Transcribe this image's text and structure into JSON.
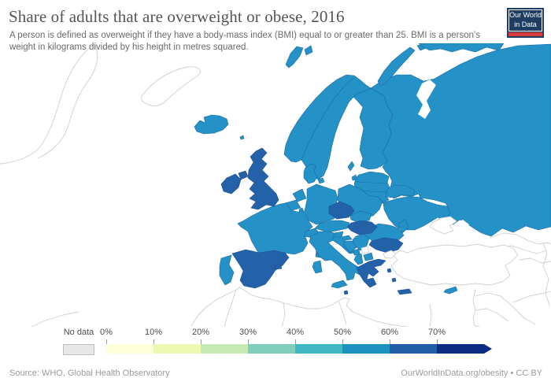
{
  "header": {
    "title": "Share of adults that are overweight or obese, 2016",
    "subtitle": "A person is defined as overweight if they have a body-mass index (BMI) equal to or greater than 25. BMI is a person's weight in kilograms divided by his height in metres squared."
  },
  "logo": {
    "line1": "Our World",
    "line2": "in Data"
  },
  "colors": {
    "logo-bg": "#1d3d63",
    "logo-accent": "#d73c3c"
  },
  "legend": {
    "no_data_label": "No data",
    "no_data_fill": "#e7e7e7",
    "no_data_border": "#bdbdbd",
    "ticks": [
      "0%",
      "10%",
      "20%",
      "30%",
      "40%",
      "50%",
      "60%",
      "70%"
    ],
    "segment_colors": [
      "#ffffd9",
      "#edf8b1",
      "#c7e9b4",
      "#7fcdbb",
      "#41b6c4",
      "#1d91c0",
      "#225ea8",
      "#0c2c84"
    ]
  },
  "map": {
    "palette": {
      "mid": "#2491c7",
      "dark": "#2361a9",
      "border": "#1b6ba0",
      "nodata_stroke": "#cfcfcf"
    },
    "class_ranges": {
      "50-60%": "mid",
      "60-70%": "dark",
      "no-data": "nodata"
    },
    "countries": {
      "iceland": "50-60%",
      "faroe-islands": "50-60%",
      "norway": "50-60%",
      "sweden": "50-60%",
      "svalbard": "50-60%",
      "finland": "50-60%",
      "denmark": "50-60%",
      "russia": "50-60%",
      "estonia": "50-60%",
      "latvia": "50-60%",
      "lithuania": "50-60%",
      "belarus": "50-60%",
      "ukraine": "50-60%",
      "moldova": "50-60%",
      "poland": "50-60%",
      "germany": "50-60%",
      "netherlands": "50-60%",
      "belgium": "50-60%",
      "luxembourg": "50-60%",
      "france": "50-60%",
      "portugal": "50-60%",
      "switzerland": "50-60%",
      "austria": "50-60%",
      "slovakia": "50-60%",
      "slovenia": "50-60%",
      "croatia": "50-60%",
      "bosnia-and-herzegovina": "50-60%",
      "serbia": "50-60%",
      "montenegro": "50-60%",
      "albania": "50-60%",
      "north-macedonia": "50-60%",
      "romania": "50-60%",
      "italy": "50-60%",
      "cyprus": "50-60%",
      "united-kingdom": "60-70%",
      "ireland": "60-70%",
      "spain": "60-70%",
      "czechia": "60-70%",
      "hungary": "60-70%",
      "bulgaria": "60-70%",
      "greece": "60-70%",
      "malta": "60-70%",
      "turkey": "no-data",
      "kosovo": "no-data",
      "crimea": "no-data"
    }
  },
  "footer": {
    "source": "Source: WHO, Global Health Observatory",
    "license": "OurWorldInData.org/obesity • CC BY"
  }
}
